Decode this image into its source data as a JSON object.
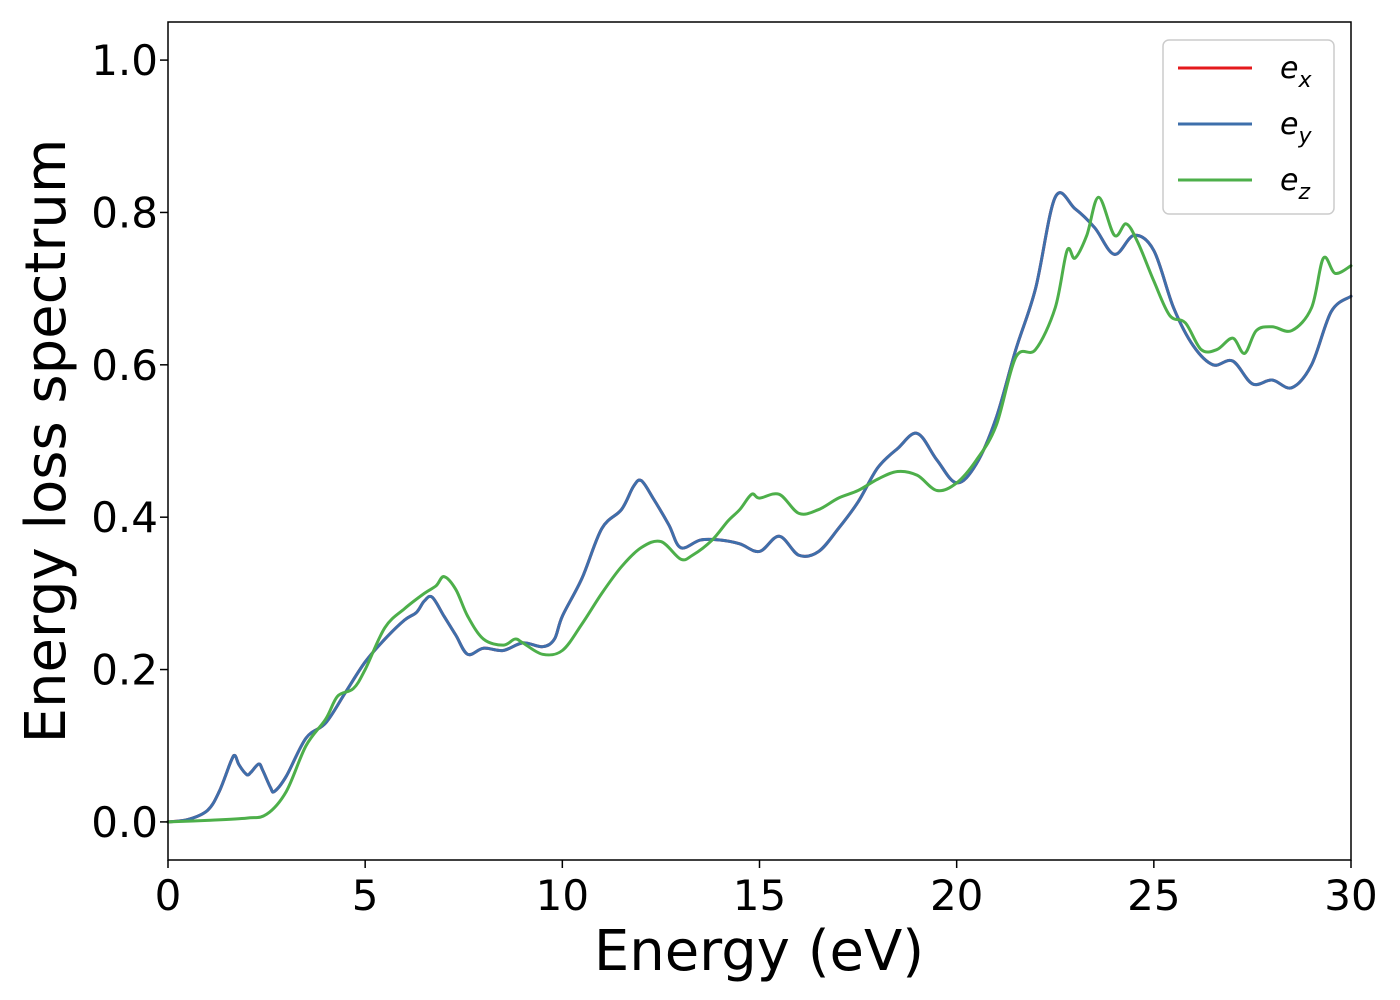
{
  "chart_data": {
    "type": "line",
    "xlabel": "Energy (eV)",
    "ylabel": "Energy loss spectrum",
    "xlim": [
      0,
      30
    ],
    "ylim": [
      -0.05,
      1.05
    ],
    "x_ticks": [
      "0",
      "5",
      "10",
      "15",
      "20",
      "25",
      "30"
    ],
    "y_ticks": [
      "0.0",
      "0.2",
      "0.4",
      "0.6",
      "0.8",
      "1.0"
    ],
    "x_tick_values": [
      0,
      5,
      10,
      15,
      20,
      25,
      30
    ],
    "y_tick_values": [
      0.0,
      0.2,
      0.4,
      0.6,
      0.8,
      1.0
    ],
    "grid": false,
    "legend_position": "top-right",
    "series": [
      {
        "name": "e_x",
        "label_base": "e",
        "label_sub": "x",
        "color": "#e41a1c",
        "x": [
          0,
          0.5,
          1.0,
          1.3,
          1.6,
          1.7,
          1.8,
          2.0,
          2.1,
          2.3,
          2.4,
          2.6,
          2.7,
          3.0,
          3.5,
          4.0,
          4.5,
          5.0,
          5.5,
          6.0,
          6.3,
          6.5,
          6.7,
          7.0,
          7.3,
          7.6,
          8.0,
          8.5,
          9.0,
          9.5,
          9.8,
          10.0,
          10.5,
          11.0,
          11.5,
          11.8,
          12.0,
          12.3,
          12.7,
          13.0,
          13.5,
          14.0,
          14.5,
          15.0,
          15.5,
          16.0,
          16.5,
          17.0,
          17.5,
          18.0,
          18.5,
          19.0,
          19.5,
          20.0,
          20.5,
          21.0,
          21.5,
          22.0,
          22.5,
          23.0,
          23.5,
          24.0,
          24.5,
          25.0,
          25.5,
          26.0,
          26.5,
          27.0,
          27.5,
          28.0,
          28.5,
          29.0,
          29.5,
          30.0
        ],
        "values": [
          0.0,
          0.003,
          0.015,
          0.04,
          0.08,
          0.087,
          0.075,
          0.062,
          0.065,
          0.076,
          0.068,
          0.045,
          0.04,
          0.06,
          0.11,
          0.13,
          0.17,
          0.21,
          0.24,
          0.265,
          0.275,
          0.29,
          0.295,
          0.27,
          0.245,
          0.22,
          0.228,
          0.225,
          0.235,
          0.23,
          0.24,
          0.27,
          0.32,
          0.385,
          0.41,
          0.44,
          0.448,
          0.425,
          0.39,
          0.36,
          0.37,
          0.37,
          0.365,
          0.355,
          0.375,
          0.35,
          0.355,
          0.385,
          0.42,
          0.465,
          0.49,
          0.51,
          0.475,
          0.445,
          0.47,
          0.53,
          0.62,
          0.7,
          0.82,
          0.805,
          0.78,
          0.745,
          0.77,
          0.75,
          0.675,
          0.625,
          0.6,
          0.605,
          0.575,
          0.58,
          0.57,
          0.6,
          0.67,
          0.69
        ]
      },
      {
        "name": "e_y",
        "label_base": "e",
        "label_sub": "y",
        "color": "#3e6fab",
        "x": [
          0,
          0.5,
          1.0,
          1.3,
          1.6,
          1.7,
          1.8,
          2.0,
          2.1,
          2.3,
          2.4,
          2.6,
          2.7,
          3.0,
          3.5,
          4.0,
          4.5,
          5.0,
          5.5,
          6.0,
          6.3,
          6.5,
          6.7,
          7.0,
          7.3,
          7.6,
          8.0,
          8.5,
          9.0,
          9.5,
          9.8,
          10.0,
          10.5,
          11.0,
          11.5,
          11.8,
          12.0,
          12.3,
          12.7,
          13.0,
          13.5,
          14.0,
          14.5,
          15.0,
          15.5,
          16.0,
          16.5,
          17.0,
          17.5,
          18.0,
          18.5,
          19.0,
          19.5,
          20.0,
          20.5,
          21.0,
          21.5,
          22.0,
          22.5,
          23.0,
          23.5,
          24.0,
          24.5,
          25.0,
          25.5,
          26.0,
          26.5,
          27.0,
          27.5,
          28.0,
          28.5,
          29.0,
          29.5,
          30.0
        ],
        "values": [
          0.0,
          0.003,
          0.015,
          0.04,
          0.08,
          0.087,
          0.075,
          0.062,
          0.065,
          0.076,
          0.068,
          0.045,
          0.04,
          0.06,
          0.11,
          0.13,
          0.17,
          0.21,
          0.24,
          0.265,
          0.275,
          0.29,
          0.295,
          0.27,
          0.245,
          0.22,
          0.228,
          0.225,
          0.235,
          0.23,
          0.24,
          0.27,
          0.32,
          0.385,
          0.41,
          0.44,
          0.448,
          0.425,
          0.39,
          0.36,
          0.37,
          0.37,
          0.365,
          0.355,
          0.375,
          0.35,
          0.355,
          0.385,
          0.42,
          0.465,
          0.49,
          0.51,
          0.475,
          0.445,
          0.47,
          0.53,
          0.62,
          0.7,
          0.82,
          0.805,
          0.78,
          0.745,
          0.77,
          0.75,
          0.675,
          0.625,
          0.6,
          0.605,
          0.575,
          0.58,
          0.57,
          0.6,
          0.67,
          0.69
        ]
      },
      {
        "name": "e_z",
        "label_base": "e",
        "label_sub": "z",
        "color": "#4daf4a",
        "x": [
          0,
          1.0,
          2.0,
          2.5,
          3.0,
          3.5,
          4.0,
          4.3,
          4.7,
          5.0,
          5.5,
          6.0,
          6.5,
          6.8,
          7.0,
          7.3,
          7.6,
          8.0,
          8.5,
          8.8,
          9.0,
          9.5,
          10.0,
          10.5,
          11.0,
          11.5,
          12.0,
          12.5,
          13.0,
          13.3,
          13.8,
          14.2,
          14.5,
          14.8,
          15.0,
          15.5,
          16.0,
          16.5,
          17.0,
          17.5,
          18.0,
          18.5,
          19.0,
          19.5,
          20.0,
          20.5,
          21.0,
          21.5,
          22.0,
          22.5,
          22.8,
          23.0,
          23.3,
          23.6,
          24.0,
          24.3,
          24.6,
          25.0,
          25.4,
          25.8,
          26.2,
          26.6,
          27.0,
          27.3,
          27.6,
          28.0,
          28.5,
          29.0,
          29.3,
          29.6,
          30.0
        ],
        "values": [
          0.0,
          0.002,
          0.005,
          0.01,
          0.04,
          0.1,
          0.135,
          0.165,
          0.175,
          0.2,
          0.255,
          0.28,
          0.3,
          0.31,
          0.322,
          0.305,
          0.27,
          0.24,
          0.232,
          0.24,
          0.235,
          0.22,
          0.225,
          0.26,
          0.3,
          0.335,
          0.36,
          0.368,
          0.345,
          0.35,
          0.37,
          0.395,
          0.41,
          0.43,
          0.425,
          0.43,
          0.405,
          0.41,
          0.425,
          0.435,
          0.45,
          0.46,
          0.455,
          0.435,
          0.445,
          0.475,
          0.52,
          0.61,
          0.62,
          0.675,
          0.75,
          0.74,
          0.77,
          0.82,
          0.77,
          0.785,
          0.76,
          0.71,
          0.665,
          0.655,
          0.62,
          0.62,
          0.635,
          0.615,
          0.645,
          0.65,
          0.645,
          0.675,
          0.74,
          0.72,
          0.73
        ]
      }
    ]
  }
}
